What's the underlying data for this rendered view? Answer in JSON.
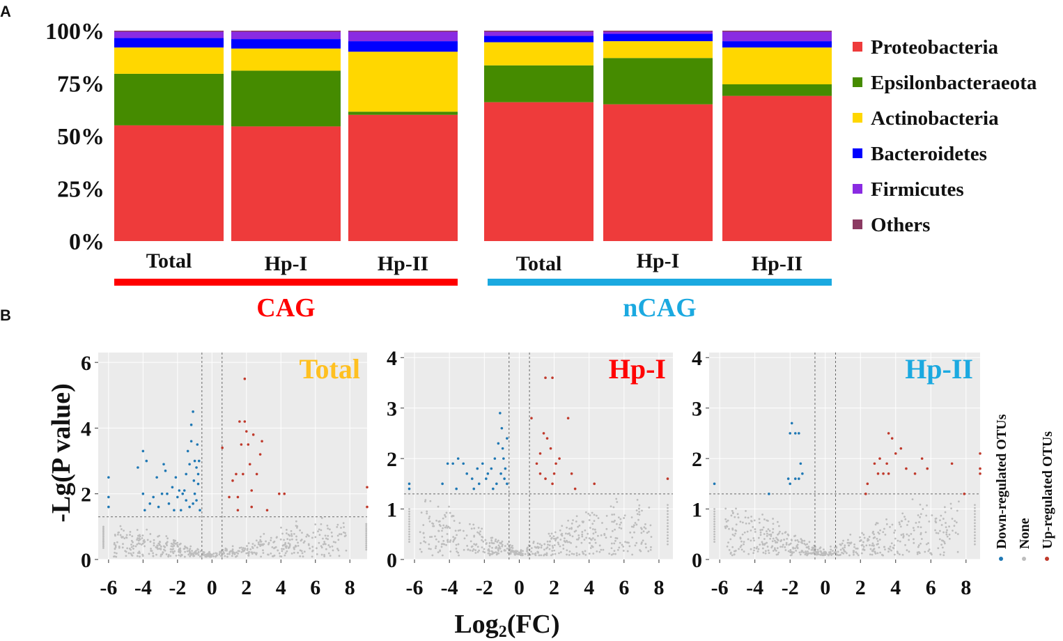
{
  "panel_labels": {
    "a": "A",
    "b": "B"
  },
  "colors": {
    "Proteobacteria": "#ee3b3b",
    "Epsilonbacteraeota": "#458b00",
    "Actinobacteria": "#ffd700",
    "Bacteroidetes": "#0000ff",
    "Firmicutes": "#8a2be2",
    "Others": "#8b3a62",
    "CAG": "#ff0000",
    "nCAG": "#1ba9e0",
    "down": "#1f78b4",
    "none": "#bdbdbd",
    "up": "#c0392b",
    "panel_bg": "#ebebeb",
    "title_total": "#ffc020",
    "title_hp1": "#ff0000",
    "title_hp2": "#1ba9e0"
  },
  "chart_data": [
    {
      "type": "bar",
      "stacked": true,
      "title": "",
      "ylabel": "",
      "ylim": [
        0,
        100
      ],
      "yticks": [
        "0%",
        "25%",
        "50%",
        "75%",
        "100%"
      ],
      "categories": [
        "Total",
        "Hp-I",
        "Hp-II",
        "Total",
        "Hp-I",
        "Hp-II"
      ],
      "groups": [
        {
          "name": "CAG",
          "categories": [
            "Total",
            "Hp-I",
            "Hp-II"
          ]
        },
        {
          "name": "nCAG",
          "categories": [
            "Total",
            "Hp-I",
            "Hp-II"
          ]
        }
      ],
      "series": [
        {
          "name": "Proteobacteria",
          "values": [
            55.0,
            54.5,
            60.0,
            66.0,
            65.0,
            69.0
          ]
        },
        {
          "name": "Epsilonbacteraeota",
          "values": [
            24.5,
            26.5,
            1.5,
            17.5,
            22.0,
            5.5
          ]
        },
        {
          "name": "Actinobacteria",
          "values": [
            12.5,
            10.5,
            28.5,
            11.0,
            8.0,
            17.5
          ]
        },
        {
          "name": "Bacteroidetes",
          "values": [
            4.5,
            4.5,
            5.0,
            3.0,
            3.5,
            3.0
          ]
        },
        {
          "name": "Firmicutes",
          "values": [
            3.0,
            3.5,
            4.5,
            2.0,
            1.0,
            4.5
          ]
        },
        {
          "name": "Others",
          "values": [
            0.5,
            0.5,
            0.5,
            0.5,
            0.5,
            0.5
          ]
        }
      ],
      "legend": [
        "Proteobacteria",
        "Epsilonbacteraeota",
        "Actinobacteria",
        "Bacteroidetes",
        "Firmicutes",
        "Others"
      ],
      "legend_position": "right"
    },
    {
      "type": "scatter",
      "title": "Total",
      "xlabel": "Log2(FC)",
      "ylabel": "-Lg(P value)",
      "xlim": [
        -6.6,
        9.0
      ],
      "ylim": [
        0,
        6.3
      ],
      "xticks": [
        -6,
        -4,
        -2,
        0,
        2,
        4,
        6,
        8
      ],
      "yticks": [
        0,
        2,
        4,
        6
      ],
      "threshold_y": 1.3,
      "threshold_x": [
        -0.585,
        0.585
      ],
      "series": [
        {
          "name": "Down-regulated OTUs",
          "points": [
            [
              -6.0,
              2.5
            ],
            [
              -6.0,
              1.9
            ],
            [
              -6.0,
              1.6
            ],
            [
              -4.3,
              2.8
            ],
            [
              -4.0,
              3.3
            ],
            [
              -3.8,
              3.0
            ],
            [
              -4.0,
              2.0
            ],
            [
              -3.6,
              1.7
            ],
            [
              -3.9,
              1.5
            ],
            [
              -3.2,
              2.5
            ],
            [
              -2.8,
              2.9
            ],
            [
              -2.7,
              2.7
            ],
            [
              -2.9,
              2.0
            ],
            [
              -2.5,
              1.7
            ],
            [
              -2.3,
              2.2
            ],
            [
              -2.1,
              2.5
            ],
            [
              -2.0,
              1.9
            ],
            [
              -1.8,
              1.5
            ],
            [
              -1.6,
              2.1
            ],
            [
              -1.5,
              2.6
            ],
            [
              -1.4,
              3.3
            ],
            [
              -1.3,
              2.9
            ],
            [
              -1.2,
              4.1
            ],
            [
              -1.1,
              4.5
            ],
            [
              -1.2,
              3.6
            ],
            [
              -1.0,
              3.0
            ],
            [
              -0.9,
              2.8
            ],
            [
              -0.8,
              2.3
            ],
            [
              -0.9,
              1.8
            ],
            [
              -1.0,
              2.0
            ],
            [
              -0.7,
              1.5
            ],
            [
              -1.3,
              1.6
            ],
            [
              -1.5,
              1.8
            ],
            [
              -1.7,
              2.0
            ],
            [
              -0.8,
              2.6
            ],
            [
              -1.1,
              1.7
            ],
            [
              -2.2,
              1.5
            ],
            [
              -3.4,
              1.9
            ],
            [
              -3.1,
              1.6
            ],
            [
              -2.6,
              2.0
            ],
            [
              -1.9,
              2.1
            ],
            [
              -0.75,
              3.0
            ],
            [
              -0.85,
              3.5
            ],
            [
              -1.05,
              2.4
            ]
          ]
        },
        {
          "name": "Up-regulated OTUs",
          "points": [
            [
              0.6,
              3.4
            ],
            [
              1.0,
              1.9
            ],
            [
              1.2,
              2.4
            ],
            [
              1.4,
              2.6
            ],
            [
              1.5,
              1.9
            ],
            [
              1.6,
              4.2
            ],
            [
              1.7,
              3.5
            ],
            [
              1.8,
              2.6
            ],
            [
              1.9,
              4.2
            ],
            [
              2.0,
              3.9
            ],
            [
              2.1,
              3.5
            ],
            [
              2.2,
              2.9
            ],
            [
              2.3,
              2.1
            ],
            [
              2.4,
              3.8
            ],
            [
              2.6,
              2.6
            ],
            [
              2.8,
              3.2
            ],
            [
              2.9,
              3.6
            ],
            [
              1.9,
              5.5
            ],
            [
              3.9,
              2.0
            ],
            [
              4.2,
              2.0
            ],
            [
              3.2,
              1.5
            ],
            [
              2.3,
              1.6
            ],
            [
              1.5,
              1.5
            ],
            [
              9.0,
              2.2
            ],
            [
              9.0,
              1.6
            ]
          ]
        }
      ],
      "legend": [
        "Down-regulated OTUs",
        "None",
        "Up-regulated OTUs"
      ]
    },
    {
      "type": "scatter",
      "title": "Hp-I",
      "xlabel": "Log2(FC)",
      "ylabel": "-Lg(P value)",
      "xlim": [
        -6.6,
        8.8
      ],
      "ylim": [
        0,
        4.1
      ],
      "xticks": [
        -6,
        -4,
        -2,
        0,
        2,
        4,
        6,
        8
      ],
      "yticks": [
        0,
        1,
        2,
        3,
        4
      ],
      "threshold_y": 1.3,
      "threshold_x": [
        -0.585,
        0.585
      ],
      "series": [
        {
          "name": "Down-regulated OTUs",
          "points": [
            [
              -6.3,
              1.5
            ],
            [
              -6.3,
              1.4
            ],
            [
              -4.1,
              1.9
            ],
            [
              -3.8,
              1.9
            ],
            [
              -3.5,
              2.0
            ],
            [
              -3.2,
              1.9
            ],
            [
              -3.0,
              1.7
            ],
            [
              -2.7,
              1.6
            ],
            [
              -2.4,
              1.8
            ],
            [
              -2.1,
              1.9
            ],
            [
              -1.9,
              1.6
            ],
            [
              -1.6,
              1.8
            ],
            [
              -1.4,
              2.0
            ],
            [
              -1.3,
              1.5
            ],
            [
              -1.1,
              2.9
            ],
            [
              -1.0,
              2.6
            ],
            [
              -1.2,
              2.3
            ],
            [
              -0.9,
              2.0
            ],
            [
              -0.8,
              1.8
            ],
            [
              -0.7,
              1.5
            ],
            [
              -1.5,
              1.4
            ],
            [
              -2.6,
              1.4
            ],
            [
              -3.6,
              1.4
            ],
            [
              -4.4,
              1.5
            ],
            [
              -0.95,
              2.2
            ],
            [
              -0.85,
              1.6
            ],
            [
              -1.05,
              1.7
            ],
            [
              -1.8,
              1.7
            ],
            [
              -2.3,
              1.5
            ],
            [
              -0.7,
              2.4
            ]
          ]
        },
        {
          "name": "Up-regulated OTUs",
          "points": [
            [
              0.7,
              2.8
            ],
            [
              1.2,
              2.1
            ],
            [
              1.4,
              2.5
            ],
            [
              1.6,
              2.4
            ],
            [
              1.8,
              2.2
            ],
            [
              1.5,
              3.6
            ],
            [
              1.9,
              3.6
            ],
            [
              1.0,
              1.9
            ],
            [
              1.2,
              1.7
            ],
            [
              1.5,
              1.6
            ],
            [
              1.9,
              1.5
            ],
            [
              2.1,
              1.9
            ],
            [
              2.3,
              2.0
            ],
            [
              2.8,
              2.8
            ],
            [
              3.0,
              1.7
            ],
            [
              3.2,
              1.4
            ],
            [
              4.3,
              1.5
            ],
            [
              8.5,
              1.6
            ],
            [
              2.0,
              1.7
            ]
          ]
        }
      ],
      "legend": [
        "Down-regulated OTUs",
        "None",
        "Up-regulated OTUs"
      ]
    },
    {
      "type": "scatter",
      "title": "Hp-II",
      "xlabel": "Log2(FC)",
      "ylabel": "-Lg(P value)",
      "xlim": [
        -6.6,
        8.8
      ],
      "ylim": [
        0,
        4.1
      ],
      "xticks": [
        -6,
        -4,
        -2,
        0,
        2,
        4,
        6,
        8
      ],
      "yticks": [
        0,
        1,
        2,
        3,
        4
      ],
      "threshold_y": 1.3,
      "threshold_x": [
        -0.585,
        0.585
      ],
      "series": [
        {
          "name": "Down-regulated OTUs",
          "points": [
            [
              -6.3,
              1.5
            ],
            [
              -3.2,
              1.3
            ],
            [
              -2.1,
              1.6
            ],
            [
              -2.0,
              1.5
            ],
            [
              -1.9,
              2.7
            ],
            [
              -1.7,
              2.5
            ],
            [
              -1.5,
              2.5
            ],
            [
              -1.4,
              1.9
            ],
            [
              -1.5,
              1.6
            ],
            [
              -1.3,
              1.7
            ],
            [
              -1.7,
              1.6
            ],
            [
              -2.0,
              2.5
            ]
          ]
        },
        {
          "name": "Up-regulated OTUs",
          "points": [
            [
              2.3,
              1.3
            ],
            [
              2.4,
              1.5
            ],
            [
              2.8,
              1.9
            ],
            [
              3.1,
              2.0
            ],
            [
              3.3,
              1.7
            ],
            [
              3.5,
              1.9
            ],
            [
              3.6,
              2.5
            ],
            [
              3.8,
              2.4
            ],
            [
              4.0,
              2.1
            ],
            [
              4.3,
              2.2
            ],
            [
              4.6,
              1.8
            ],
            [
              5.1,
              1.7
            ],
            [
              5.5,
              2.0
            ],
            [
              5.8,
              1.8
            ],
            [
              7.2,
              1.9
            ],
            [
              7.9,
              1.3
            ],
            [
              8.8,
              2.1
            ],
            [
              8.8,
              1.7
            ],
            [
              8.8,
              1.8
            ],
            [
              3.6,
              1.7
            ],
            [
              3.0,
              1.7
            ]
          ]
        }
      ],
      "legend": [
        "Down-regulated OTUs",
        "None",
        "Up-regulated OTUs"
      ]
    }
  ]
}
